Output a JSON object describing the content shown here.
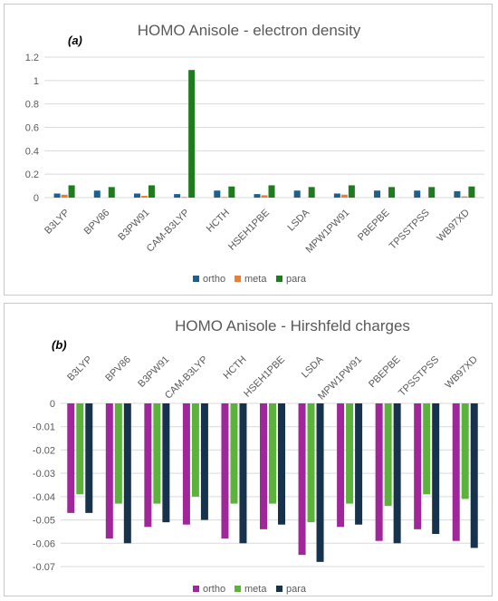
{
  "chart_data": [
    {
      "type": "bar",
      "panel_label": "(a)",
      "title": "HOMO Anisole - electron density",
      "categories": [
        "B3LYP",
        "BPV86",
        "B3PW91",
        "CAM-B3LYP",
        "HCTH",
        "HSEH1PBE",
        "LSDA",
        "MPW1PW91",
        "PBEPBE",
        "TPSSTPSS",
        "WB97XD"
      ],
      "series": [
        {
          "name": "ortho",
          "color": "#1f5f8b",
          "values": [
            0.035,
            0.06,
            0.035,
            0.03,
            0.06,
            0.03,
            0.06,
            0.035,
            0.06,
            0.06,
            0.055
          ]
        },
        {
          "name": "meta",
          "color": "#ed7d31",
          "values": [
            0.025,
            0.0,
            0.015,
            0.005,
            0.005,
            0.02,
            0.0,
            0.025,
            0.0,
            0.0,
            0.01
          ]
        },
        {
          "name": "para",
          "color": "#1e7b1e",
          "values": [
            0.105,
            0.09,
            0.105,
            1.09,
            0.095,
            0.105,
            0.09,
            0.105,
            0.09,
            0.09,
            0.095
          ]
        }
      ],
      "yticks": [
        "0",
        "0.2",
        "0.4",
        "0.6",
        "0.8",
        "1",
        "1.2"
      ],
      "ylim": [
        0,
        1.2
      ],
      "grid": true,
      "legend_position": "bottom"
    },
    {
      "type": "bar",
      "panel_label": "(b)",
      "title": "HOMO Anisole - Hirshfeld charges",
      "categories": [
        "B3LYP",
        "BPV86",
        "B3PW91",
        "CAM-B3LYP",
        "HCTH",
        "HSEH1PBE",
        "LSDA",
        "MPW1PW91",
        "PBEPBE",
        "TPSSTPSS",
        "WB97XD"
      ],
      "series": [
        {
          "name": "ortho",
          "color": "#a0279b",
          "values": [
            -0.047,
            -0.058,
            -0.053,
            -0.052,
            -0.058,
            -0.054,
            -0.065,
            -0.053,
            -0.059,
            -0.054,
            -0.059
          ]
        },
        {
          "name": "meta",
          "color": "#5bb33b",
          "values": [
            -0.039,
            -0.043,
            -0.043,
            -0.04,
            -0.043,
            -0.043,
            -0.051,
            -0.043,
            -0.044,
            -0.039,
            -0.041
          ]
        },
        {
          "name": "para",
          "color": "#17324d",
          "values": [
            -0.047,
            -0.06,
            -0.051,
            -0.05,
            -0.06,
            -0.052,
            -0.068,
            -0.052,
            -0.06,
            -0.056,
            -0.062
          ]
        }
      ],
      "yticks": [
        "0",
        "-0.01",
        "-0.02",
        "-0.03",
        "-0.04",
        "-0.05",
        "-0.06",
        "-0.07"
      ],
      "ylim": [
        -0.07,
        0
      ],
      "grid": true,
      "legend_position": "bottom"
    }
  ]
}
